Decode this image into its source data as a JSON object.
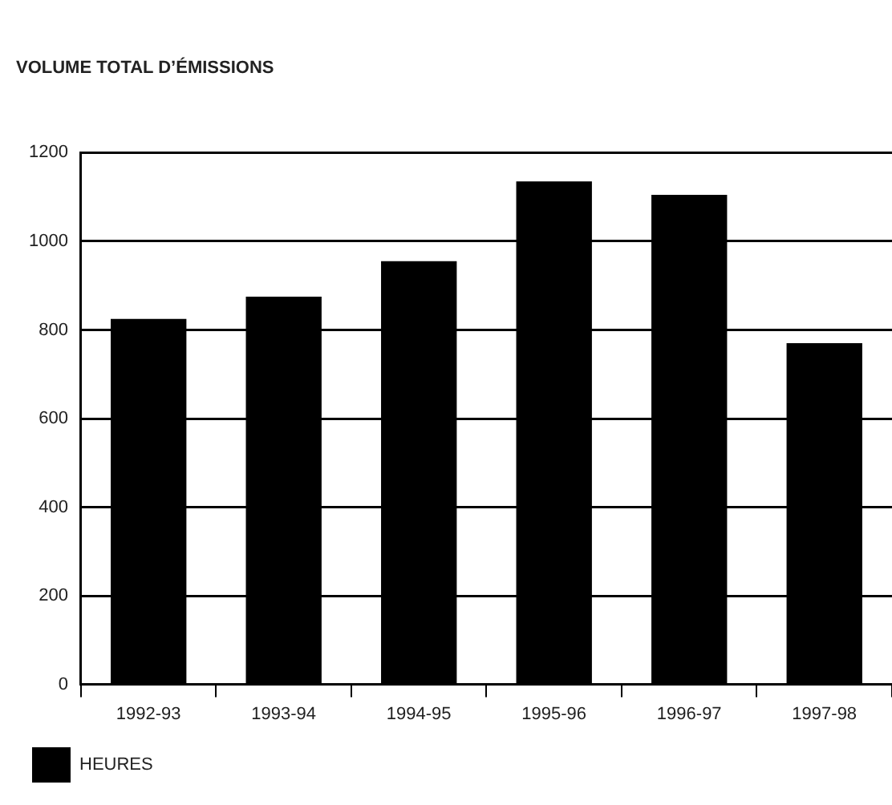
{
  "chart_data": {
    "type": "bar",
    "title": "VOLUME TOTAL D’ÉMISSIONS",
    "categories": [
      "1992-93",
      "1993-94",
      "1994-95",
      "1995-96",
      "1996-97",
      "1997-98"
    ],
    "series": [
      {
        "name": "HEURES",
        "color": "#000000",
        "values": [
          825,
          875,
          955,
          1135,
          1105,
          770
        ]
      }
    ],
    "ylim": [
      0,
      1200
    ],
    "yticks": [
      0,
      200,
      400,
      600,
      800,
      1000,
      1200
    ],
    "grid": "y",
    "legend": "bottom left"
  }
}
